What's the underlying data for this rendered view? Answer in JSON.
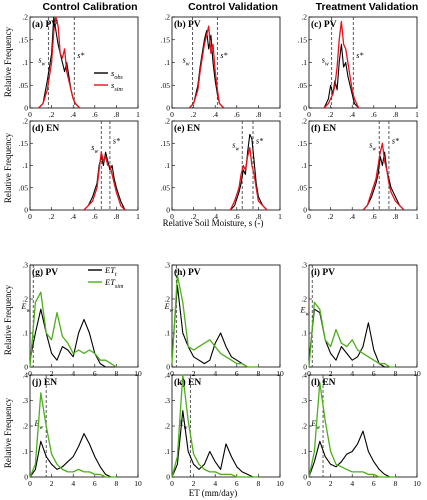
{
  "figure": {
    "column_titles": [
      "Control Calibration",
      "Control Validation",
      "Treatment Validation"
    ],
    "top_xlabel": "Relative Soil Moisture, s (-)",
    "bottom_xlabel": "ET (mm/day)",
    "ylabel": "Relative Frequency"
  },
  "legend_top": {
    "obs": "s_obs",
    "sim": "s_sim"
  },
  "legend_bottom": {
    "obs": "ET_t",
    "sim": "ET_sim"
  },
  "colors": {
    "obs": "#000000",
    "sim_s": "#e8101a",
    "sim_et": "#4caf1a"
  },
  "chart_data": [
    {
      "id": "a",
      "label": "(a) PV",
      "type": "line",
      "xlim": [
        0,
        1
      ],
      "ylim": [
        0,
        0.2
      ],
      "xticks": [
        0,
        0.2,
        0.4,
        0.6,
        0.8,
        1
      ],
      "yticks": [
        0,
        0.05,
        0.1,
        0.15,
        0.2
      ],
      "x": [
        0.08,
        0.12,
        0.16,
        0.2,
        0.22,
        0.24,
        0.26,
        0.28,
        0.3,
        0.32,
        0.34,
        0.36,
        0.38,
        0.4,
        0.42,
        0.46
      ],
      "series": [
        {
          "key": "obs",
          "values": [
            0,
            0.01,
            0.06,
            0.12,
            0.2,
            0.17,
            0.14,
            0.12,
            0.1,
            0.08,
            0.1,
            0.07,
            0.04,
            0.02,
            0.01,
            0
          ]
        },
        {
          "key": "sim",
          "values": [
            0,
            0.01,
            0.04,
            0.1,
            0.17,
            0.2,
            0.18,
            0.12,
            0.11,
            0.13,
            0.08,
            0.06,
            0.04,
            0.02,
            0.01,
            0
          ]
        }
      ],
      "markers": [
        {
          "x": 0.17,
          "label": "s_w",
          "ly": 0.1
        },
        {
          "x": 0.41,
          "label": "s*",
          "ly": 0.11
        }
      ]
    },
    {
      "id": "b",
      "label": "(b) PV",
      "type": "line",
      "xlim": [
        0,
        1
      ],
      "ylim": [
        0,
        0.2
      ],
      "xticks": [
        0,
        0.2,
        0.4,
        0.6,
        0.8,
        1
      ],
      "yticks": [
        0,
        0.05,
        0.1,
        0.15,
        0.2
      ],
      "x": [
        0.16,
        0.2,
        0.24,
        0.26,
        0.28,
        0.3,
        0.32,
        0.34,
        0.36,
        0.38,
        0.4,
        0.42,
        0.44,
        0.48
      ],
      "series": [
        {
          "key": "obs",
          "values": [
            0,
            0.01,
            0.05,
            0.09,
            0.12,
            0.15,
            0.17,
            0.13,
            0.16,
            0.1,
            0.06,
            0.03,
            0.01,
            0
          ]
        },
        {
          "key": "sim",
          "values": [
            0,
            0.01,
            0.04,
            0.08,
            0.11,
            0.14,
            0.16,
            0.18,
            0.12,
            0.14,
            0.08,
            0.04,
            0.01,
            0
          ]
        }
      ],
      "markers": [
        {
          "x": 0.19,
          "label": "s_w",
          "ly": 0.1
        },
        {
          "x": 0.42,
          "label": "s*",
          "ly": 0.11
        }
      ]
    },
    {
      "id": "c",
      "label": "(c) PV",
      "type": "line",
      "xlim": [
        0,
        1
      ],
      "ylim": [
        0,
        0.2
      ],
      "xticks": [
        0,
        0.2,
        0.4,
        0.6,
        0.8,
        1
      ],
      "yticks": [
        0,
        0.05,
        0.1,
        0.15,
        0.2
      ],
      "x": [
        0.14,
        0.18,
        0.2,
        0.22,
        0.24,
        0.26,
        0.28,
        0.3,
        0.32,
        0.34,
        0.36,
        0.38,
        0.4,
        0.42,
        0.46
      ],
      "series": [
        {
          "key": "obs",
          "values": [
            0,
            0.02,
            0.05,
            0.03,
            0.06,
            0.04,
            0.1,
            0.14,
            0.09,
            0.1,
            0.07,
            0.05,
            0.03,
            0.01,
            0
          ]
        },
        {
          "key": "sim",
          "values": [
            0,
            0.01,
            0.02,
            0.03,
            0.05,
            0.09,
            0.15,
            0.19,
            0.14,
            0.13,
            0.1,
            0.07,
            0.04,
            0.02,
            0
          ]
        }
      ],
      "markers": [
        {
          "x": 0.21,
          "label": "s_w",
          "ly": 0.1
        },
        {
          "x": 0.41,
          "label": "s*",
          "ly": 0.11
        }
      ]
    },
    {
      "id": "d",
      "label": "(d) EN",
      "type": "line",
      "xlim": [
        0,
        1
      ],
      "ylim": [
        0,
        0.2
      ],
      "xticks": [
        0,
        0.2,
        0.4,
        0.6,
        0.8,
        1
      ],
      "yticks": [
        0,
        0.05,
        0.1,
        0.15,
        0.2
      ],
      "x": [
        0.5,
        0.54,
        0.58,
        0.62,
        0.64,
        0.66,
        0.68,
        0.7,
        0.72,
        0.74,
        0.76,
        0.78,
        0.8,
        0.84,
        0.88
      ],
      "series": [
        {
          "key": "obs",
          "values": [
            0,
            0.01,
            0.03,
            0.06,
            0.1,
            0.12,
            0.1,
            0.13,
            0.11,
            0.09,
            0.1,
            0.07,
            0.05,
            0.02,
            0
          ]
        },
        {
          "key": "sim",
          "values": [
            0,
            0.01,
            0.02,
            0.05,
            0.09,
            0.13,
            0.11,
            0.12,
            0.1,
            0.1,
            0.08,
            0.06,
            0.04,
            0.01,
            0
          ]
        }
      ],
      "markers": [
        {
          "x": 0.66,
          "label": "s_w",
          "ly": 0.135
        },
        {
          "x": 0.74,
          "label": "s*",
          "ly": 0.15
        }
      ]
    },
    {
      "id": "e",
      "label": "(e) EN",
      "type": "line",
      "xlim": [
        0,
        1
      ],
      "ylim": [
        0,
        0.2
      ],
      "xticks": [
        0,
        0.2,
        0.4,
        0.6,
        0.8,
        1
      ],
      "yticks": [
        0,
        0.05,
        0.1,
        0.15,
        0.2
      ],
      "x": [
        0.54,
        0.58,
        0.62,
        0.64,
        0.66,
        0.68,
        0.7,
        0.72,
        0.74,
        0.76,
        0.78,
        0.8,
        0.84,
        0.88
      ],
      "series": [
        {
          "key": "obs",
          "values": [
            0,
            0.01,
            0.04,
            0.06,
            0.09,
            0.08,
            0.13,
            0.17,
            0.16,
            0.11,
            0.06,
            0.03,
            0.01,
            0
          ]
        },
        {
          "key": "sim",
          "values": [
            0,
            0.02,
            0.05,
            0.08,
            0.1,
            0.09,
            0.12,
            0.14,
            0.1,
            0.08,
            0.05,
            0.02,
            0.01,
            0
          ]
        }
      ],
      "markers": [
        {
          "x": 0.65,
          "label": "s_w",
          "ly": 0.14
        },
        {
          "x": 0.75,
          "label": "s*",
          "ly": 0.15
        }
      ]
    },
    {
      "id": "f",
      "label": "(f) EN",
      "type": "line",
      "xlim": [
        0,
        1
      ],
      "ylim": [
        0,
        0.2
      ],
      "xticks": [
        0,
        0.2,
        0.4,
        0.6,
        0.8,
        1
      ],
      "yticks": [
        0,
        0.05,
        0.1,
        0.15,
        0.2
      ],
      "x": [
        0.5,
        0.54,
        0.58,
        0.62,
        0.64,
        0.66,
        0.68,
        0.7,
        0.72,
        0.74,
        0.76,
        0.8,
        0.84,
        0.88
      ],
      "series": [
        {
          "key": "obs",
          "values": [
            0,
            0.01,
            0.03,
            0.06,
            0.08,
            0.12,
            0.1,
            0.13,
            0.09,
            0.07,
            0.05,
            0.03,
            0.01,
            0
          ]
        },
        {
          "key": "sim",
          "values": [
            0,
            0.01,
            0.04,
            0.07,
            0.1,
            0.13,
            0.15,
            0.11,
            0.09,
            0.06,
            0.04,
            0.02,
            0.01,
            0
          ]
        }
      ],
      "markers": [
        {
          "x": 0.65,
          "label": "s_w",
          "ly": 0.14
        },
        {
          "x": 0.74,
          "label": "s*",
          "ly": 0.15
        }
      ]
    },
    {
      "id": "g",
      "label": "(g) PV",
      "type": "line",
      "xlim": [
        0,
        10
      ],
      "ylim": [
        0,
        0.3
      ],
      "xticks": [
        0,
        2,
        4,
        6,
        8,
        10
      ],
      "yticks": [
        0,
        0.1,
        0.2,
        0.3
      ],
      "x": [
        0,
        0.5,
        1,
        1.5,
        2,
        2.5,
        3,
        3.5,
        4,
        4.5,
        5,
        5.5,
        6,
        6.5,
        7,
        7.5,
        8
      ],
      "series": [
        {
          "key": "obs",
          "values": [
            0.02,
            0.1,
            0.17,
            0.1,
            0.04,
            0.02,
            0.06,
            0.05,
            0.03,
            0.1,
            0.14,
            0.1,
            0.04,
            0.01,
            0,
            0,
            0
          ]
        },
        {
          "key": "sim",
          "values": [
            0,
            0.19,
            0.22,
            0.1,
            0.08,
            0.16,
            0.09,
            0.07,
            0.04,
            0.05,
            0.04,
            0.05,
            0.04,
            0.02,
            0.02,
            0.01,
            0
          ]
        }
      ],
      "markers": [
        {
          "x": 0.3,
          "label": "E_w",
          "ly": 0.17
        }
      ]
    },
    {
      "id": "h",
      "label": "(h) PV",
      "type": "line",
      "xlim": [
        0,
        10
      ],
      "ylim": [
        0,
        0.3
      ],
      "xticks": [
        0,
        2,
        4,
        6,
        8,
        10
      ],
      "yticks": [
        0,
        0.1,
        0.2,
        0.3
      ],
      "x": [
        0,
        0.5,
        1,
        1.5,
        2,
        2.5,
        3,
        3.5,
        4,
        4.5,
        5,
        5.5,
        6,
        6.5,
        7,
        7.5,
        8
      ],
      "series": [
        {
          "key": "obs",
          "values": [
            0.03,
            0.24,
            0.1,
            0.06,
            0.03,
            0.02,
            0.01,
            0.02,
            0.07,
            0.1,
            0.06,
            0.03,
            0.02,
            0.01,
            0,
            0,
            0
          ]
        },
        {
          "key": "sim",
          "values": [
            0.01,
            0.27,
            0.19,
            0.06,
            0.05,
            0.06,
            0.07,
            0.08,
            0.06,
            0.04,
            0.03,
            0.02,
            0.01,
            0.01,
            0,
            0,
            0
          ]
        }
      ],
      "markers": [
        {
          "x": 0.4,
          "label": "E_w",
          "ly": 0.17
        }
      ]
    },
    {
      "id": "i",
      "label": "(i) PV",
      "type": "line",
      "xlim": [
        0,
        10
      ],
      "ylim": [
        0,
        0.3
      ],
      "xticks": [
        0,
        2,
        4,
        6,
        8,
        10
      ],
      "yticks": [
        0,
        0.1,
        0.2,
        0.3
      ],
      "x": [
        0,
        0.5,
        1,
        1.5,
        2,
        2.5,
        3,
        3.5,
        4,
        4.5,
        5,
        5.5,
        6,
        6.5,
        7,
        7.5,
        8
      ],
      "series": [
        {
          "key": "obs",
          "values": [
            0.02,
            0.17,
            0.16,
            0.08,
            0.04,
            0.02,
            0.06,
            0.04,
            0.02,
            0.03,
            0.06,
            0.13,
            0.05,
            0.01,
            0,
            0,
            0
          ]
        },
        {
          "key": "sim",
          "values": [
            0,
            0.19,
            0.17,
            0.08,
            0.06,
            0.11,
            0.07,
            0.06,
            0.08,
            0.05,
            0.04,
            0.03,
            0.02,
            0.01,
            0.01,
            0,
            0
          ]
        }
      ],
      "markers": [
        {
          "x": 0.3,
          "label": "E_w",
          "ly": 0.16
        }
      ]
    },
    {
      "id": "j",
      "label": "(j) EN",
      "type": "line",
      "xlim": [
        0,
        10
      ],
      "ylim": [
        0,
        0.4
      ],
      "xticks": [
        0,
        2,
        4,
        6,
        8,
        10
      ],
      "yticks": [
        0,
        0.1,
        0.2,
        0.3,
        0.4
      ],
      "x": [
        0,
        0.5,
        1,
        1.5,
        2,
        2.5,
        3,
        3.5,
        4,
        4.5,
        5,
        5.5,
        6,
        6.5,
        7,
        7.5,
        8
      ],
      "series": [
        {
          "key": "obs",
          "values": [
            0,
            0.03,
            0.14,
            0.08,
            0.05,
            0.03,
            0.04,
            0.06,
            0.08,
            0.12,
            0.17,
            0.13,
            0.08,
            0.04,
            0.01,
            0,
            0
          ]
        },
        {
          "key": "sim",
          "values": [
            0,
            0.05,
            0.33,
            0.2,
            0.09,
            0.05,
            0.03,
            0.02,
            0.02,
            0.03,
            0.02,
            0.02,
            0.01,
            0.01,
            0,
            0,
            0
          ]
        }
      ],
      "markers": [
        {
          "x": 1.5,
          "label": "E_w",
          "ly": 0.2
        }
      ]
    },
    {
      "id": "k",
      "label": "(k) EN",
      "type": "line",
      "xlim": [
        0,
        10
      ],
      "ylim": [
        0,
        0.4
      ],
      "xticks": [
        0,
        2,
        4,
        6,
        8,
        10
      ],
      "yticks": [
        0,
        0.1,
        0.2,
        0.3,
        0.4
      ],
      "x": [
        0,
        0.5,
        1,
        1.5,
        2,
        2.5,
        3,
        3.5,
        4,
        4.5,
        5,
        5.5,
        6,
        6.5,
        7,
        7.5,
        8
      ],
      "series": [
        {
          "key": "obs",
          "values": [
            0,
            0.05,
            0.26,
            0.1,
            0.05,
            0.03,
            0.05,
            0.1,
            0.06,
            0.03,
            0.13,
            0.08,
            0.04,
            0.02,
            0.01,
            0,
            0
          ]
        },
        {
          "key": "sim",
          "values": [
            0,
            0.08,
            0.4,
            0.22,
            0.09,
            0.05,
            0.03,
            0.02,
            0.02,
            0.01,
            0.01,
            0.01,
            0,
            0,
            0,
            0,
            0
          ]
        }
      ],
      "markers": [
        {
          "x": 1.7,
          "label": "E_w",
          "ly": 0.2
        }
      ]
    },
    {
      "id": "l",
      "label": "(l) EN",
      "type": "line",
      "xlim": [
        0,
        10
      ],
      "ylim": [
        0,
        0.4
      ],
      "xticks": [
        0,
        2,
        4,
        6,
        8,
        10
      ],
      "yticks": [
        0,
        0.1,
        0.2,
        0.3,
        0.4
      ],
      "x": [
        0,
        0.5,
        1,
        1.5,
        2,
        2.5,
        3,
        3.5,
        4,
        4.5,
        5,
        5.5,
        6,
        6.5,
        7,
        7.5,
        8
      ],
      "series": [
        {
          "key": "obs",
          "values": [
            0,
            0.06,
            0.14,
            0.08,
            0.05,
            0.04,
            0.06,
            0.09,
            0.1,
            0.13,
            0.18,
            0.1,
            0.06,
            0.03,
            0.01,
            0,
            0
          ]
        },
        {
          "key": "sim",
          "values": [
            0,
            0.1,
            0.37,
            0.22,
            0.1,
            0.05,
            0.04,
            0.03,
            0.02,
            0.02,
            0.02,
            0.01,
            0.01,
            0,
            0,
            0,
            0
          ]
        }
      ],
      "markers": [
        {
          "x": 1.3,
          "label": "E_w",
          "ly": 0.2
        }
      ]
    }
  ]
}
